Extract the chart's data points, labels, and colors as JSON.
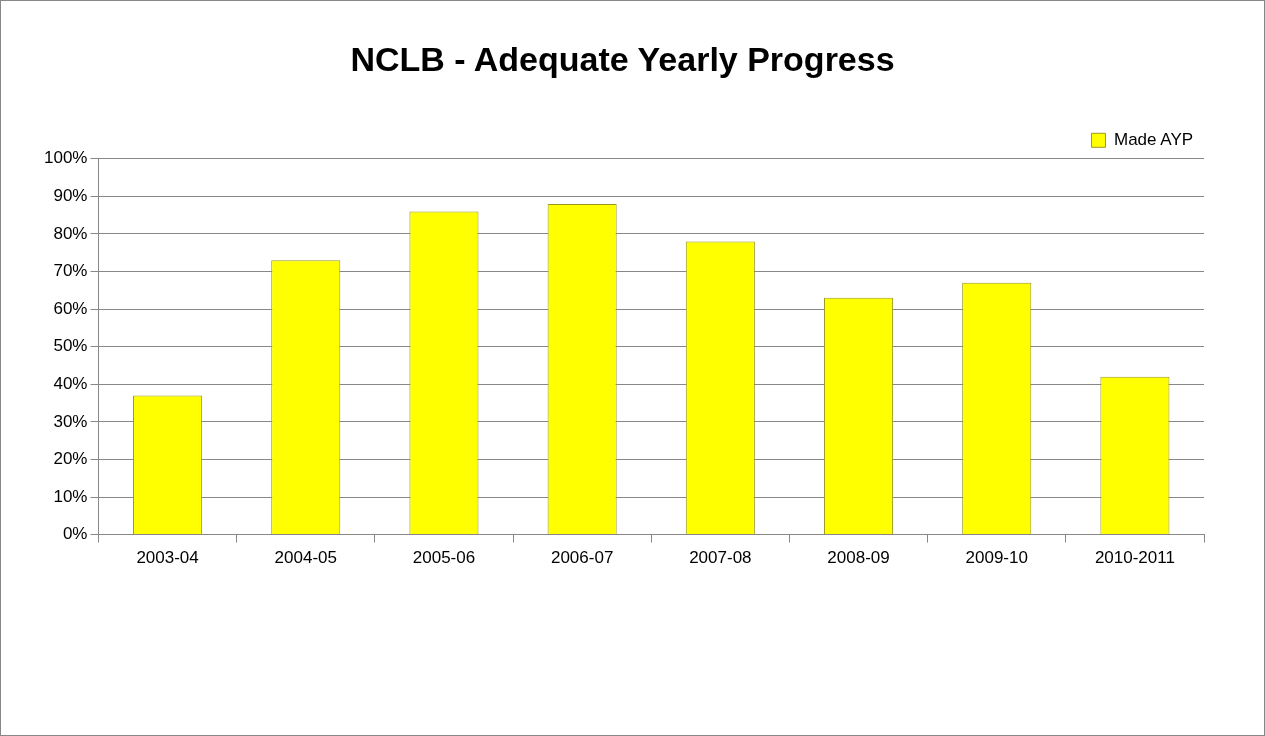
{
  "chart_data": {
    "type": "bar",
    "title": "NCLB - Adequate Yearly Progress",
    "categories": [
      "2003-04",
      "2004-05",
      "2005-06",
      "2006-07",
      "2007-08",
      "2008-09",
      "2009-10",
      "2010-2011"
    ],
    "series": [
      {
        "name": "Made AYP",
        "color": "#ffff00",
        "values": [
          37,
          73,
          86,
          88,
          78,
          63,
          67,
          42
        ]
      }
    ],
    "ylim": [
      0,
      100
    ],
    "yticks": [
      {
        "value": 0,
        "label": "0%"
      },
      {
        "value": 10,
        "label": "10%"
      },
      {
        "value": 20,
        "label": "20%"
      },
      {
        "value": 30,
        "label": "30%"
      },
      {
        "value": 40,
        "label": "40%"
      },
      {
        "value": 50,
        "label": "50%"
      },
      {
        "value": 60,
        "label": "60%"
      },
      {
        "value": 70,
        "label": "70%"
      },
      {
        "value": 80,
        "label": "80%"
      },
      {
        "value": 90,
        "label": "90%"
      },
      {
        "value": 100,
        "label": "100%"
      }
    ],
    "grid": "y",
    "legend": "top right"
  }
}
